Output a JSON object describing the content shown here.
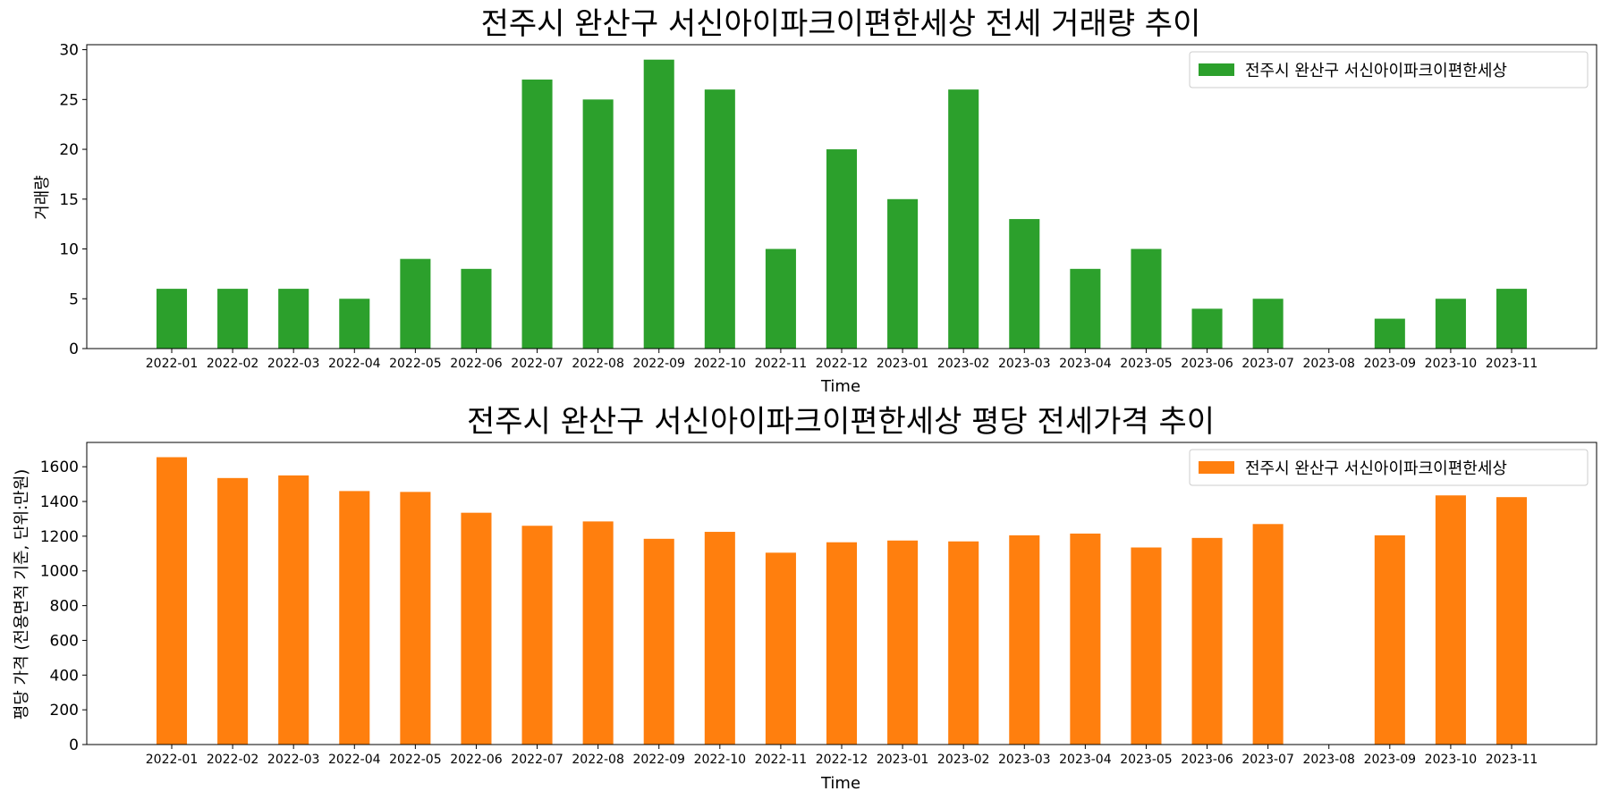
{
  "chart_data": [
    {
      "type": "bar",
      "title": "전주시 완산구 서신아이파크이편한세상 전세 거래량 추이",
      "xlabel": "Time",
      "ylabel": "거래량",
      "ylim": [
        0,
        30.5
      ],
      "yticks": [
        0,
        5,
        10,
        15,
        20,
        25,
        30
      ],
      "grid": false,
      "legend_position": "top-right",
      "categories": [
        "2022-01",
        "2022-02",
        "2022-03",
        "2022-04",
        "2022-05",
        "2022-06",
        "2022-07",
        "2022-08",
        "2022-09",
        "2022-10",
        "2022-11",
        "2022-12",
        "2023-01",
        "2023-02",
        "2023-03",
        "2023-04",
        "2023-05",
        "2023-06",
        "2023-07",
        "2023-08",
        "2023-09",
        "2023-10",
        "2023-11"
      ],
      "series": [
        {
          "name": "전주시 완산구 서신아이파크이편한세상",
          "color": "#2ca02c",
          "values": [
            6,
            6,
            6,
            5,
            9,
            8,
            27,
            25,
            29,
            26,
            10,
            20,
            15,
            26,
            13,
            8,
            10,
            4,
            5,
            null,
            3,
            5,
            6
          ]
        }
      ]
    },
    {
      "type": "bar",
      "title": "전주시 완산구 서신아이파크이편한세상 평당 전세가격 추이",
      "xlabel": "Time",
      "ylabel": "평당 가격 (전용면적 기준, 단위:만원)",
      "ylim": [
        0,
        1740
      ],
      "yticks": [
        0,
        200,
        400,
        600,
        800,
        1000,
        1200,
        1400,
        1600
      ],
      "grid": false,
      "legend_position": "top-right",
      "categories": [
        "2022-01",
        "2022-02",
        "2022-03",
        "2022-04",
        "2022-05",
        "2022-06",
        "2022-07",
        "2022-08",
        "2022-09",
        "2022-10",
        "2022-11",
        "2022-12",
        "2023-01",
        "2023-02",
        "2023-03",
        "2023-04",
        "2023-05",
        "2023-06",
        "2023-07",
        "2023-08",
        "2023-09",
        "2023-10",
        "2023-11"
      ],
      "series": [
        {
          "name": "전주시 완산구 서신아이파크이편한세상",
          "color": "#ff7f0e",
          "values": [
            1655,
            1535,
            1550,
            1460,
            1455,
            1335,
            1260,
            1285,
            1185,
            1225,
            1105,
            1165,
            1175,
            1170,
            1205,
            1215,
            1135,
            1190,
            1270,
            null,
            1205,
            1435,
            1425
          ]
        }
      ]
    }
  ]
}
